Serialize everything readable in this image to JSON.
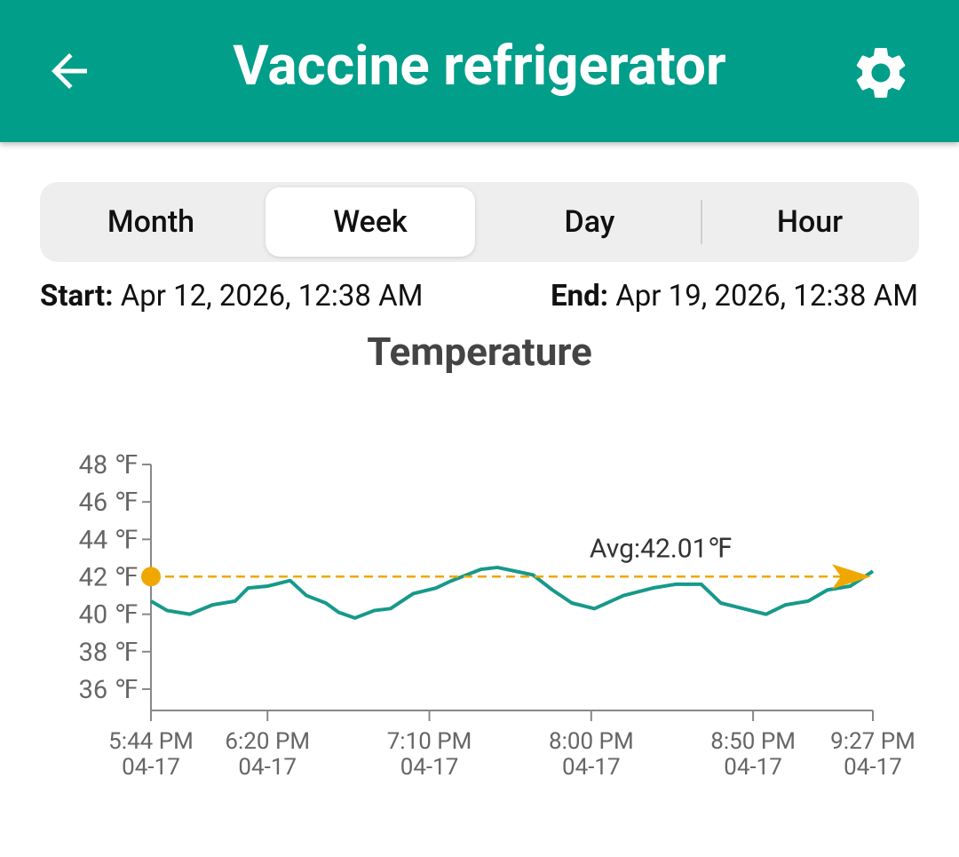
{
  "header": {
    "title": "Vaccine refrigerator"
  },
  "tabs": [
    "Month",
    "Week",
    "Day",
    "Hour"
  ],
  "range": {
    "start_label": "Start:",
    "start": "Apr 12, 2026, 12:38 AM",
    "end_label": "End:",
    "end": "Apr 19, 2026, 12:38 AM"
  },
  "chart_data": {
    "type": "line",
    "title": "Temperature",
    "color": "#17998a",
    "x": [
      "04-17 17:44",
      "04-17 17:49",
      "04-17 17:56",
      "04-17 18:03",
      "04-17 18:10",
      "04-17 18:14",
      "04-17 18:20",
      "04-17 18:27",
      "04-17 18:32",
      "04-17 18:38",
      "04-17 18:42",
      "04-17 18:47",
      "04-17 18:53",
      "04-17 18:58",
      "04-17 19:05",
      "04-17 19:12",
      "04-17 19:17",
      "04-17 19:26",
      "04-17 19:31",
      "04-17 19:42",
      "04-17 19:48",
      "04-17 19:54",
      "04-17 20:01",
      "04-17 20:10",
      "04-17 20:19",
      "04-17 20:26",
      "04-17 20:34",
      "04-17 20:40",
      "04-17 20:47",
      "04-17 20:54",
      "04-17 21:00",
      "04-17 21:07",
      "04-17 21:13",
      "04-17 21:20",
      "04-17 21:27"
    ],
    "values": [
      40.7,
      40.2,
      40.0,
      40.5,
      40.7,
      41.4,
      41.5,
      41.8,
      41.0,
      40.6,
      40.1,
      39.8,
      40.2,
      40.3,
      41.1,
      41.4,
      41.8,
      42.4,
      42.5,
      42.1,
      41.3,
      40.6,
      40.3,
      41.0,
      41.4,
      41.6,
      41.6,
      40.6,
      40.3,
      40.0,
      40.5,
      40.7,
      41.3,
      41.5,
      42.3
    ],
    "xlim": [
      "04-17 17:44",
      "04-17 21:27"
    ],
    "xticks": [
      {
        "value": "04-17 17:44",
        "label": "5:44 PM\n04-17"
      },
      {
        "value": "04-17 18:20",
        "label": "6:20 PM\n04-17"
      },
      {
        "value": "04-17 19:10",
        "label": "7:10 PM\n04-17"
      },
      {
        "value": "04-17 20:00",
        "label": "8:00 PM\n04-17"
      },
      {
        "value": "04-17 20:50",
        "label": "8:50 PM\n04-17"
      },
      {
        "value": "04-17 21:27",
        "label": "9:27 PM\n04-17"
      }
    ],
    "ylim": [
      34.86,
      48
    ],
    "yticks": [
      {
        "value": 36,
        "label": "36 ℉"
      },
      {
        "value": 38,
        "label": "38 ℉"
      },
      {
        "value": 40,
        "label": "40 ℉"
      },
      {
        "value": 42,
        "label": "42 ℉"
      },
      {
        "value": 44,
        "label": "44 ℉"
      },
      {
        "value": 46,
        "label": "46 ℉"
      },
      {
        "value": 48,
        "label": "48 ℉"
      }
    ],
    "grid": false,
    "average": {
      "value": 42.01,
      "label": "Avg:42.01℉",
      "color": "#f0a800"
    }
  }
}
